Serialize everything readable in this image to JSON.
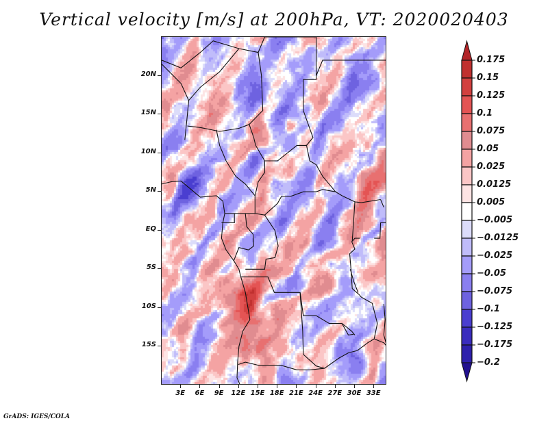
{
  "title": "Vertical velocity [m/s] at 200hPa, VT: 2020020403",
  "footer": "GrADS: IGES/COLA",
  "map": {
    "projection": "lat-lon",
    "lon_range": [
      0,
      35
    ],
    "lat_range": [
      -20,
      25
    ],
    "y_ticks": [
      {
        "lat": 20,
        "label": "20N"
      },
      {
        "lat": 15,
        "label": "15N"
      },
      {
        "lat": 10,
        "label": "10N"
      },
      {
        "lat": 5,
        "label": "5N"
      },
      {
        "lat": 0,
        "label": "EQ"
      },
      {
        "lat": -5,
        "label": "5S"
      },
      {
        "lat": -10,
        "label": "10S"
      },
      {
        "lat": -15,
        "label": "15S"
      }
    ],
    "x_ticks": [
      {
        "lon": 3,
        "label": "3E"
      },
      {
        "lon": 6,
        "label": "6E"
      },
      {
        "lon": 9,
        "label": "9E"
      },
      {
        "lon": 12,
        "label": "12E"
      },
      {
        "lon": 15,
        "label": "15E"
      },
      {
        "lon": 18,
        "label": "18E"
      },
      {
        "lon": 21,
        "label": "21E"
      },
      {
        "lon": 24,
        "label": "24E"
      },
      {
        "lon": 27,
        "label": "27E"
      },
      {
        "lon": 30,
        "label": "30E"
      },
      {
        "lon": 33,
        "label": "33E"
      }
    ]
  },
  "colorbar": {
    "levels": [
      "0.175",
      "0.15",
      "0.125",
      "0.1",
      "0.075",
      "0.05",
      "0.025",
      "0.0125",
      "0.005",
      "-0.005",
      "-0.0125",
      "-0.025",
      "-0.05",
      "-0.075",
      "-0.1",
      "-0.125",
      "-0.175",
      "-0.2"
    ],
    "colors": [
      "#b22428",
      "#c0302f",
      "#d2403f",
      "#e45454",
      "#e87070",
      "#e08c90",
      "#f4a3a3",
      "#fbc6c6",
      "#fde4e4",
      "#ffffff",
      "#dcdcfa",
      "#c0bcfa",
      "#a49cfa",
      "#8a7ff0",
      "#6e62e0",
      "#4a3ed0",
      "#3a2cbe",
      "#2e20ac",
      "#22108f"
    ]
  },
  "chart_data": {
    "type": "heatmap",
    "title": "Vertical velocity [m/s] at 200hPa, VT: 2020020403",
    "variable": "Vertical velocity",
    "units": "m/s",
    "level": "200hPa",
    "valid_time": "2020020403",
    "xlabel": "",
    "ylabel": "",
    "x_range": [
      0,
      35
    ],
    "y_range": [
      -20,
      25
    ],
    "x_tick_labels": [
      "3E",
      "6E",
      "9E",
      "12E",
      "15E",
      "18E",
      "21E",
      "24E",
      "27E",
      "30E",
      "33E"
    ],
    "y_tick_labels": [
      "20N",
      "15N",
      "10N",
      "5N",
      "EQ",
      "5S",
      "10S",
      "15S"
    ],
    "colorbar_levels": [
      0.175,
      0.15,
      0.125,
      0.1,
      0.075,
      0.05,
      0.025,
      0.0125,
      0.005,
      -0.005,
      -0.0125,
      -0.025,
      -0.05,
      -0.075,
      -0.1,
      -0.125,
      -0.175,
      -0.2
    ],
    "legend": "right (vertical colorbar)",
    "notable_features": [
      "Strong ascent (red, up to >0.15 m/s) over coastal Angola/Gabon region near 12-14E, 5S-15S",
      "Alternating banded ascent/descent wave patterns over Niger/Chad (10-22N)",
      "Broad descent (blue) streak over Gulf of Guinea near 5N"
    ]
  }
}
